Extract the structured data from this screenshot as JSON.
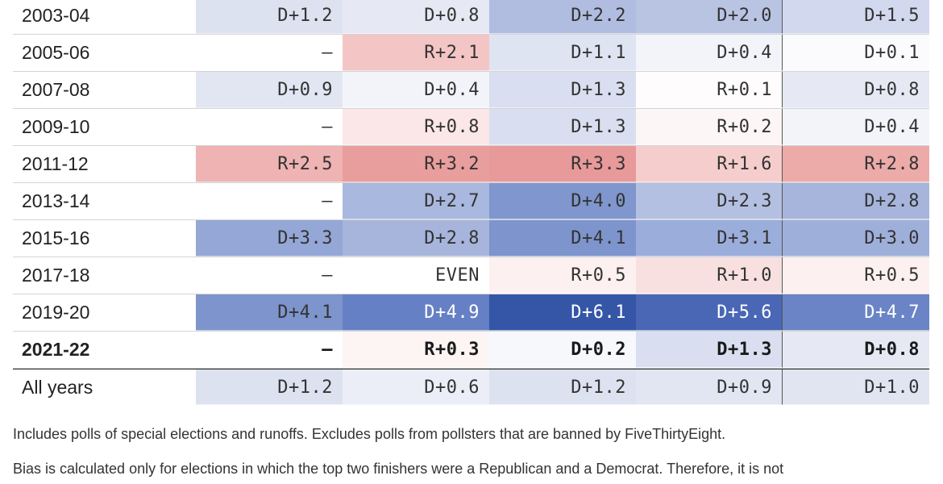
{
  "table": {
    "rows": [
      {
        "label": "2003-04",
        "cells": [
          "D+1.2",
          "D+0.8",
          "D+2.2",
          "D+2.0",
          "D+1.5"
        ],
        "colors": [
          "#dde2f0",
          "#e6e9f4",
          "#b0bde0",
          "#b9c4e3",
          "#d2d8ee"
        ]
      },
      {
        "label": "2005-06",
        "cells": [
          "–",
          "R+2.1",
          "D+1.1",
          "D+0.4",
          "D+0.1"
        ],
        "colors": [
          "#ffffff",
          "#f4c5c5",
          "#dfe4f2",
          "#f3f4fa",
          "#fbfbfe"
        ]
      },
      {
        "label": "2007-08",
        "cells": [
          "D+0.9",
          "D+0.4",
          "D+1.3",
          "R+0.1",
          "D+0.8"
        ],
        "colors": [
          "#e2e6f3",
          "#f3f4fa",
          "#d9dff0",
          "#fefcfc",
          "#e6e9f4"
        ]
      },
      {
        "label": "2009-10",
        "cells": [
          "–",
          "R+0.8",
          "D+1.3",
          "R+0.2",
          "D+0.4"
        ],
        "colors": [
          "#ffffff",
          "#fbe7e7",
          "#d9dff0",
          "#fdf6f6",
          "#f3f4fa"
        ]
      },
      {
        "label": "2011-12",
        "cells": [
          "R+2.5",
          "R+3.2",
          "R+3.3",
          "R+1.6",
          "R+2.8"
        ],
        "colors": [
          "#efb3b3",
          "#e89e9c",
          "#e8999a",
          "#f5cdcd",
          "#ecaaa9"
        ]
      },
      {
        "label": "2013-14",
        "cells": [
          "–",
          "D+2.7",
          "D+4.0",
          "D+2.3",
          "D+2.8"
        ],
        "colors": [
          "#ffffff",
          "#a9b8de",
          "#7f96ce",
          "#b4c0e1",
          "#a7b5dc"
        ]
      },
      {
        "label": "2015-16",
        "cells": [
          "D+3.3",
          "D+2.8",
          "D+4.1",
          "D+3.1",
          "D+3.0"
        ],
        "colors": [
          "#95a7d7",
          "#a7b5dc",
          "#7d94cd",
          "#9baddb",
          "#9eafda"
        ]
      },
      {
        "label": "2017-18",
        "cells": [
          "–",
          "EVEN",
          "R+0.5",
          "R+1.0",
          "R+0.5"
        ],
        "colors": [
          "#ffffff",
          "#ffffff",
          "#fcf0f0",
          "#f8e0e0",
          "#fcf0f0"
        ]
      },
      {
        "label": "2019-20",
        "cells": [
          "D+4.1",
          "D+4.9",
          "D+6.1",
          "D+5.6",
          "D+4.7"
        ],
        "colors": [
          "#7d94cd",
          "#6680c5",
          "#3555a7",
          "#4a67b6",
          "#6a84c6"
        ]
      },
      {
        "label": "2021-22",
        "cells": [
          "–",
          "R+0.3",
          "D+0.2",
          "D+1.3",
          "D+0.8"
        ],
        "colors": [
          "#ffffff",
          "#fdf4f4",
          "#f7f8fc",
          "#d9dff0",
          "#e6e9f4"
        ],
        "bold": true
      },
      {
        "label": "All years",
        "cells": [
          "D+1.2",
          "D+0.6",
          "D+1.2",
          "D+0.9",
          "D+1.0"
        ],
        "colors": [
          "#dde2f0",
          "#eceef7",
          "#dde2f0",
          "#e2e6f3",
          "#e1e5f2"
        ],
        "total": true
      }
    ]
  },
  "notes": {
    "note1": "Includes polls of special elections and runoffs. Excludes polls from pollsters that are banned by FiveThirtyEight.",
    "note2": "Bias is calculated only for elections in which the top two finishers were a Republican and a Democrat. Therefore, it is not"
  }
}
